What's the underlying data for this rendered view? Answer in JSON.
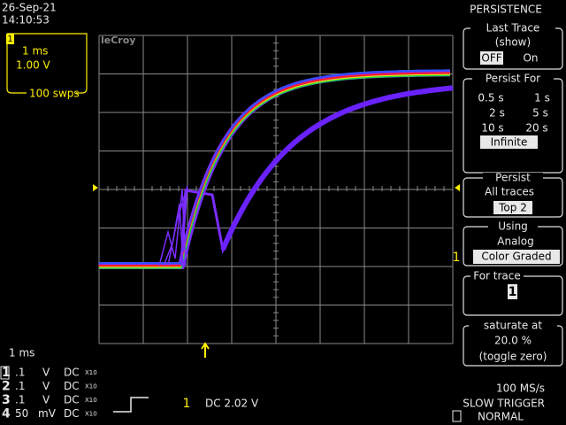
{
  "header": {
    "date": "26-Sep-21",
    "time": "14:10:53"
  },
  "channel_box": {
    "trace": "1",
    "timebase": "1 ms",
    "volts": "1.00 V",
    "sweeps": "100 swps"
  },
  "logo": "leCroy",
  "menu": {
    "title": "PERSISTENCE",
    "last_trace": {
      "label": "Last Trace",
      "sub": "(show)",
      "options": [
        "OFF",
        "On"
      ]
    },
    "persist_for": {
      "label": "Persist For",
      "options": [
        "0.5 s",
        "1 s",
        "2 s",
        "5 s",
        "10 s",
        "20 s",
        "Infinite"
      ]
    },
    "persist": {
      "label": "Persist",
      "value": "All traces",
      "option": "Top 2"
    },
    "using": {
      "label": "Using",
      "value": "Analog",
      "option": "Color Graded"
    },
    "for_trace": {
      "label": "For trace",
      "value": "1"
    },
    "saturate": {
      "label": "saturate at",
      "value": "20.0 %",
      "note": "(toggle zero)"
    }
  },
  "level_marker": "1",
  "status": {
    "timebase": "1 ms",
    "channels": [
      {
        "id": "1",
        "scale": ".1",
        "unit": "V",
        "coupling": "DC",
        "probe": "X10"
      },
      {
        "id": "2",
        "scale": ".1",
        "unit": "V",
        "coupling": "DC",
        "probe": "X10"
      },
      {
        "id": "3",
        "scale": ".1",
        "unit": "V",
        "coupling": "DC",
        "probe": "X10"
      },
      {
        "id": "4",
        "scale": "50",
        "unit": "mV",
        "coupling": "DC",
        "probe": "X10"
      }
    ]
  },
  "trigger": {
    "channel": "1",
    "setting": "DC 2.02 V"
  },
  "acquisition": {
    "rate": "100 MS/s",
    "mode": "SLOW TRIGGER",
    "trigger_mode": "NORMAL"
  }
}
